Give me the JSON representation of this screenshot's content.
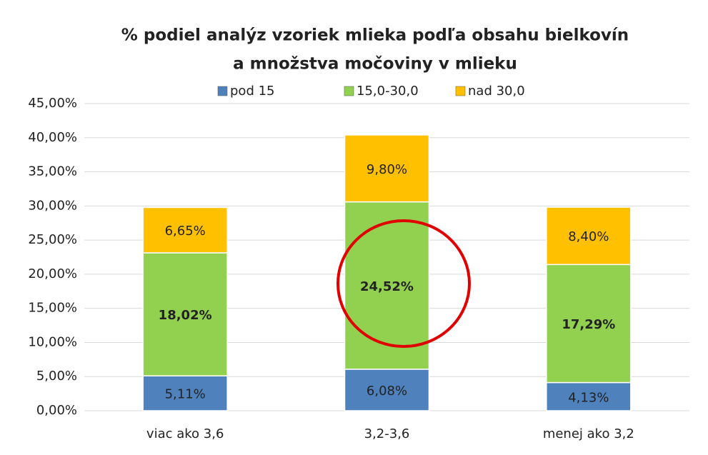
{
  "chart_data": {
    "type": "stacked_bar",
    "title": [
      "% podiel analýz vzoriek mlieka podľa obsahu bielkovín",
      "a množstva močoviny v mlieku"
    ],
    "categories": [
      "viac ako 3,6",
      "3,2-3,6",
      "menej ako 3,2"
    ],
    "series": [
      {
        "name": "pod 15",
        "color": "#4f81bd",
        "values": [
          5.11,
          6.08,
          4.13
        ],
        "value_labels": [
          "5,11%",
          "6,08%",
          "4,13%"
        ]
      },
      {
        "name": "15,0-30,0",
        "color": "#92d050",
        "values": [
          18.02,
          24.52,
          17.29
        ],
        "value_labels": [
          "18,02%",
          "24,52%",
          "17,29%"
        ]
      },
      {
        "name": "nad 30,0",
        "color": "#ffc000",
        "values": [
          6.65,
          9.8,
          8.4
        ],
        "value_labels": [
          "6,65%",
          "9,80%",
          "8,40%"
        ]
      }
    ],
    "ylim": [
      0,
      45
    ],
    "yticks": [
      {
        "value": 0,
        "label": "0,00%"
      },
      {
        "value": 5,
        "label": "5,00%"
      },
      {
        "value": 10,
        "label": "10,00%"
      },
      {
        "value": 15,
        "label": "15,00%"
      },
      {
        "value": 20,
        "label": "20,00%"
      },
      {
        "value": 25,
        "label": "25,00%"
      },
      {
        "value": 30,
        "label": "30,00%"
      },
      {
        "value": 35,
        "label": "35,00%"
      },
      {
        "value": 40,
        "label": "40,00%"
      },
      {
        "value": 45,
        "label": "45,00%"
      }
    ],
    "grid": true,
    "legend": "top"
  }
}
